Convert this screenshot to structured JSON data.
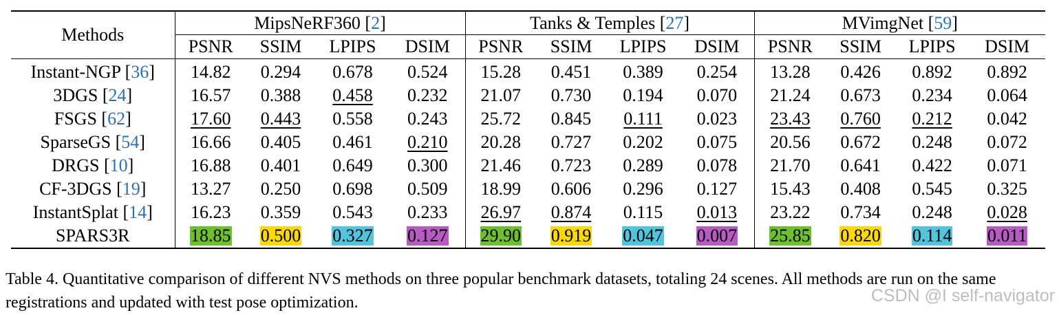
{
  "table": {
    "methods_header": "Methods",
    "groups": [
      {
        "name": "MipsNeRF360",
        "cite": "2"
      },
      {
        "name": "Tanks & Temples",
        "cite": "27"
      },
      {
        "name": "MVimgNet",
        "cite": "59"
      }
    ],
    "metrics": [
      "PSNR",
      "SSIM",
      "LPIPS",
      "DSIM"
    ],
    "rows": [
      {
        "method": "Instant-NGP",
        "cite": "36",
        "values": [
          "14.82",
          "0.294",
          "0.678",
          "0.524",
          "15.28",
          "0.451",
          "0.389",
          "0.254",
          "13.28",
          "0.426",
          "0.892",
          "0.892"
        ],
        "underline": []
      },
      {
        "method": "3DGS",
        "cite": "24",
        "values": [
          "16.57",
          "0.388",
          "0.458",
          "0.232",
          "21.07",
          "0.730",
          "0.194",
          "0.070",
          "21.24",
          "0.673",
          "0.234",
          "0.064"
        ],
        "underline": [
          2
        ]
      },
      {
        "method": "FSGS",
        "cite": "62",
        "values": [
          "17.60",
          "0.443",
          "0.558",
          "0.243",
          "25.72",
          "0.845",
          "0.111",
          "0.023",
          "23.43",
          "0.760",
          "0.212",
          "0.042"
        ],
        "underline": [
          0,
          1,
          6,
          8,
          9,
          10
        ]
      },
      {
        "method": "SparseGS",
        "cite": "54",
        "values": [
          "16.66",
          "0.405",
          "0.461",
          "0.210",
          "20.28",
          "0.727",
          "0.202",
          "0.075",
          "20.56",
          "0.672",
          "0.248",
          "0.072"
        ],
        "underline": [
          3
        ]
      },
      {
        "method": "DRGS",
        "cite": "10",
        "values": [
          "16.88",
          "0.401",
          "0.649",
          "0.300",
          "21.46",
          "0.723",
          "0.289",
          "0.078",
          "21.70",
          "0.641",
          "0.422",
          "0.071"
        ],
        "underline": []
      },
      {
        "method": "CF-3DGS",
        "cite": "19",
        "values": [
          "13.27",
          "0.250",
          "0.698",
          "0.509",
          "18.99",
          "0.606",
          "0.296",
          "0.127",
          "15.43",
          "0.408",
          "0.545",
          "0.325"
        ],
        "underline": []
      },
      {
        "method": "InstantSplat",
        "cite": "14",
        "values": [
          "16.23",
          "0.359",
          "0.543",
          "0.233",
          "26.97",
          "0.874",
          "0.115",
          "0.013",
          "23.22",
          "0.734",
          "0.248",
          "0.028"
        ],
        "underline": [
          4,
          5,
          7,
          11
        ]
      },
      {
        "method": "SPARS3R",
        "cite": "",
        "values": [
          "18.85",
          "0.500",
          "0.327",
          "0.127",
          "29.90",
          "0.919",
          "0.047",
          "0.007",
          "25.85",
          "0.820",
          "0.114",
          "0.011"
        ],
        "underline": [],
        "highlight": true
      }
    ],
    "highlight_colors": [
      "#6cbf2e",
      "#fbd80a",
      "#52c4dc",
      "#b75ac2"
    ]
  },
  "caption": "Table 4. Quantitative comparison of different NVS methods on three popular benchmark datasets, totaling 24 scenes. All methods are run on the same registrations and updated with test pose optimization.",
  "watermark": "CSDN @I self-navigator"
}
